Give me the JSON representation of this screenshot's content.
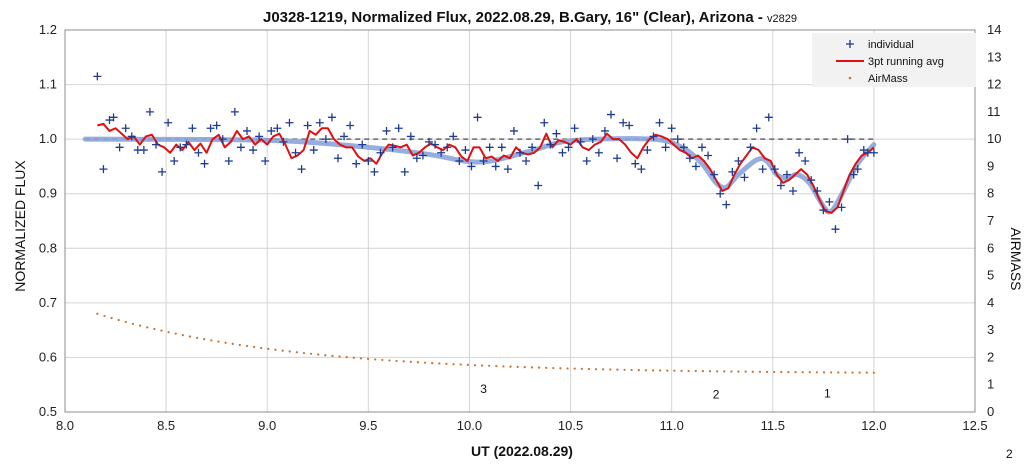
{
  "chart_data": {
    "type": "scatter",
    "title_main": "J0328-1219, Normalized Flux, 2022.08.29, B.Gary, 16\" (Clear), Arizona - ",
    "title_version": "v2829",
    "xlabel": "UT (2022.08.29)",
    "ylabel": "NORMALIZED FLUX",
    "y2label": "AIRMASS",
    "xlim": [
      8.0,
      12.5
    ],
    "ylim": [
      0.5,
      1.2
    ],
    "y2lim": [
      0,
      14
    ],
    "xticks": [
      "8.0",
      "8.5",
      "9.0",
      "9.5",
      "10.0",
      "10.5",
      "11.0",
      "11.5",
      "12.0",
      "12.5"
    ],
    "yticks": [
      "0.5",
      "0.6",
      "0.7",
      "0.8",
      "0.9",
      "1.0",
      "1.1",
      "1.2"
    ],
    "y2ticks": [
      "0",
      "1",
      "2",
      "3",
      "4",
      "5",
      "6",
      "7",
      "8",
      "9",
      "10",
      "11",
      "12",
      "13",
      "14"
    ],
    "grid": true,
    "legend_position": "top-right",
    "legend": [
      {
        "label": "individual",
        "color": "#1f3c8f",
        "marker": "plus"
      },
      {
        "label": "3pt running avg",
        "color": "#e01010",
        "marker": "line"
      },
      {
        "label": "AirMass",
        "color": "#c87030",
        "marker": "dot"
      }
    ],
    "baseline": {
      "y": 1.0,
      "x": [
        8.1,
        12.0
      ],
      "style": "dashed",
      "color": "#666666"
    },
    "model": {
      "color": "#8aa4dc",
      "points": [
        [
          8.1,
          1.0
        ],
        [
          9.0,
          0.998
        ],
        [
          9.5,
          0.985
        ],
        [
          9.8,
          0.972
        ],
        [
          10.05,
          0.958
        ],
        [
          10.3,
          0.978
        ],
        [
          10.5,
          0.997
        ],
        [
          10.9,
          1.0
        ],
        [
          11.05,
          0.985
        ],
        [
          11.15,
          0.955
        ],
        [
          11.22,
          0.92
        ],
        [
          11.27,
          0.912
        ],
        [
          11.33,
          0.935
        ],
        [
          11.42,
          0.962
        ],
        [
          11.47,
          0.96
        ],
        [
          11.52,
          0.935
        ],
        [
          11.57,
          0.928
        ],
        [
          11.62,
          0.935
        ],
        [
          11.68,
          0.92
        ],
        [
          11.75,
          0.877
        ],
        [
          11.79,
          0.868
        ],
        [
          11.85,
          0.905
        ],
        [
          11.92,
          0.955
        ],
        [
          12.0,
          0.99
        ]
      ]
    },
    "series": [
      {
        "name": "individual",
        "points": [
          [
            8.16,
            1.115
          ],
          [
            8.19,
            0.945
          ],
          [
            8.22,
            1.035
          ],
          [
            8.24,
            1.04
          ],
          [
            8.27,
            0.985
          ],
          [
            8.3,
            1.02
          ],
          [
            8.33,
            1.005
          ],
          [
            8.36,
            0.98
          ],
          [
            8.39,
            0.98
          ],
          [
            8.42,
            1.05
          ],
          [
            8.45,
            0.99
          ],
          [
            8.48,
            0.94
          ],
          [
            8.51,
            1.03
          ],
          [
            8.54,
            0.96
          ],
          [
            8.57,
            0.985
          ],
          [
            8.6,
            0.99
          ],
          [
            8.63,
            1.02
          ],
          [
            8.66,
            0.975
          ],
          [
            8.69,
            0.955
          ],
          [
            8.72,
            1.02
          ],
          [
            8.75,
            1.025
          ],
          [
            8.78,
            1.0
          ],
          [
            8.81,
            0.96
          ],
          [
            8.84,
            1.05
          ],
          [
            8.87,
            0.985
          ],
          [
            8.9,
            1.015
          ],
          [
            8.93,
            0.98
          ],
          [
            8.96,
            1.005
          ],
          [
            8.99,
            0.96
          ],
          [
            9.02,
            1.015
          ],
          [
            9.05,
            1.02
          ],
          [
            9.08,
            0.995
          ],
          [
            9.11,
            1.03
          ],
          [
            9.14,
            0.975
          ],
          [
            9.17,
            0.945
          ],
          [
            9.2,
            1.025
          ],
          [
            9.23,
            0.98
          ],
          [
            9.26,
            1.03
          ],
          [
            9.29,
            1.0
          ],
          [
            9.32,
            1.04
          ],
          [
            9.35,
            0.965
          ],
          [
            9.38,
            1.005
          ],
          [
            9.41,
            1.025
          ],
          [
            9.44,
            0.955
          ],
          [
            9.47,
            0.99
          ],
          [
            9.5,
            0.96
          ],
          [
            9.53,
            0.94
          ],
          [
            9.56,
            0.975
          ],
          [
            9.59,
            1.015
          ],
          [
            9.62,
            0.985
          ],
          [
            9.65,
            1.02
          ],
          [
            9.68,
            0.94
          ],
          [
            9.71,
            1.005
          ],
          [
            9.74,
            0.965
          ],
          [
            9.77,
            0.97
          ],
          [
            9.8,
            0.995
          ],
          [
            9.83,
            0.99
          ],
          [
            9.86,
            0.975
          ],
          [
            9.89,
            0.985
          ],
          [
            9.92,
            1.005
          ],
          [
            9.95,
            0.96
          ],
          [
            9.98,
            0.98
          ],
          [
            10.01,
            0.95
          ],
          [
            10.04,
            1.04
          ],
          [
            10.07,
            0.96
          ],
          [
            10.1,
            0.985
          ],
          [
            10.13,
            0.95
          ],
          [
            10.16,
            0.985
          ],
          [
            10.19,
            0.945
          ],
          [
            10.22,
            1.015
          ],
          [
            10.25,
            0.975
          ],
          [
            10.28,
            0.96
          ],
          [
            10.31,
            0.985
          ],
          [
            10.34,
            0.915
          ],
          [
            10.37,
            1.03
          ],
          [
            10.4,
            0.99
          ],
          [
            10.43,
            1.01
          ],
          [
            10.46,
            0.975
          ],
          [
            10.49,
            0.985
          ],
          [
            10.52,
            1.02
          ],
          [
            10.55,
            0.995
          ],
          [
            10.58,
            0.96
          ],
          [
            10.61,
            1.0
          ],
          [
            10.64,
            0.975
          ],
          [
            10.67,
            1.015
          ],
          [
            10.7,
            1.045
          ],
          [
            10.73,
            0.965
          ],
          [
            10.76,
            1.03
          ],
          [
            10.79,
            1.025
          ],
          [
            10.82,
            0.955
          ],
          [
            10.85,
            0.945
          ],
          [
            10.88,
            0.98
          ],
          [
            10.91,
            1.005
          ],
          [
            10.94,
            1.03
          ],
          [
            10.97,
            0.985
          ],
          [
            11.0,
            1.02
          ],
          [
            11.03,
            1.0
          ],
          [
            11.06,
            0.985
          ],
          [
            11.09,
            0.965
          ],
          [
            11.12,
            0.95
          ],
          [
            11.15,
            0.985
          ],
          [
            11.18,
            0.97
          ],
          [
            11.21,
            0.935
          ],
          [
            11.24,
            0.9
          ],
          [
            11.27,
            0.88
          ],
          [
            11.3,
            0.94
          ],
          [
            11.33,
            0.96
          ],
          [
            11.36,
            0.93
          ],
          [
            11.39,
            0.985
          ],
          [
            11.42,
            1.02
          ],
          [
            11.45,
            0.945
          ],
          [
            11.48,
            1.04
          ],
          [
            11.51,
            0.945
          ],
          [
            11.54,
            0.915
          ],
          [
            11.57,
            0.935
          ],
          [
            11.6,
            0.905
          ],
          [
            11.63,
            0.975
          ],
          [
            11.66,
            0.96
          ],
          [
            11.69,
            0.925
          ],
          [
            11.72,
            0.905
          ],
          [
            11.75,
            0.87
          ],
          [
            11.78,
            0.885
          ],
          [
            11.81,
            0.835
          ],
          [
            11.84,
            0.875
          ],
          [
            11.87,
            1.0
          ],
          [
            11.9,
            0.935
          ],
          [
            11.92,
            0.945
          ],
          [
            11.95,
            0.98
          ],
          [
            11.97,
            0.975
          ],
          [
            12.0,
            0.975
          ]
        ]
      },
      {
        "name": "3pt running avg",
        "points": [
          [
            8.16,
            1.025
          ],
          [
            8.19,
            1.028
          ],
          [
            8.22,
            1.015
          ],
          [
            8.25,
            1.02
          ],
          [
            8.28,
            1.01
          ],
          [
            8.31,
            1.0
          ],
          [
            8.34,
            1.005
          ],
          [
            8.37,
            0.99
          ],
          [
            8.4,
            1.005
          ],
          [
            8.43,
            1.008
          ],
          [
            8.46,
            0.99
          ],
          [
            8.49,
            0.985
          ],
          [
            8.52,
            0.975
          ],
          [
            8.55,
            0.99
          ],
          [
            8.58,
            0.98
          ],
          [
            8.61,
            0.995
          ],
          [
            8.64,
            0.98
          ],
          [
            8.67,
            0.992
          ],
          [
            8.7,
            0.975
          ],
          [
            8.73,
            1.0
          ],
          [
            8.76,
            1.008
          ],
          [
            8.79,
            0.985
          ],
          [
            8.82,
            0.995
          ],
          [
            8.85,
            1.015
          ],
          [
            8.88,
            1.0
          ],
          [
            8.91,
            1.005
          ],
          [
            8.94,
            0.99
          ],
          [
            8.97,
            1.0
          ],
          [
            9.0,
            0.99
          ],
          [
            9.03,
            1.005
          ],
          [
            9.06,
            1.01
          ],
          [
            9.09,
            0.99
          ],
          [
            9.12,
            0.965
          ],
          [
            9.15,
            0.97
          ],
          [
            9.18,
            0.98
          ],
          [
            9.21,
            1.015
          ],
          [
            9.24,
            1.008
          ],
          [
            9.27,
            1.02
          ],
          [
            9.3,
            1.02
          ],
          [
            9.33,
            1.0
          ],
          [
            9.36,
            0.99
          ],
          [
            9.39,
            0.985
          ],
          [
            9.42,
            0.985
          ],
          [
            9.45,
            0.968
          ],
          [
            9.48,
            0.96
          ],
          [
            9.51,
            0.965
          ],
          [
            9.54,
            0.955
          ],
          [
            9.57,
            0.975
          ],
          [
            9.6,
            0.99
          ],
          [
            9.63,
            0.988
          ],
          [
            9.66,
            0.985
          ],
          [
            9.69,
            0.99
          ],
          [
            9.72,
            0.97
          ],
          [
            9.75,
            0.975
          ],
          [
            9.78,
            0.985
          ],
          [
            9.81,
            0.992
          ],
          [
            9.84,
            0.985
          ],
          [
            9.87,
            0.98
          ],
          [
            9.9,
            0.99
          ],
          [
            9.93,
            0.985
          ],
          [
            9.96,
            0.968
          ],
          [
            9.99,
            0.96
          ],
          [
            10.02,
            0.985
          ],
          [
            10.05,
            0.985
          ],
          [
            10.08,
            0.965
          ],
          [
            10.11,
            0.968
          ],
          [
            10.14,
            0.96
          ],
          [
            10.17,
            0.97
          ],
          [
            10.2,
            0.965
          ],
          [
            10.23,
            0.985
          ],
          [
            10.26,
            0.975
          ],
          [
            10.29,
            0.972
          ],
          [
            10.32,
            0.975
          ],
          [
            10.35,
            0.985
          ],
          [
            10.38,
            1.01
          ],
          [
            10.41,
            0.985
          ],
          [
            10.44,
            0.998
          ],
          [
            10.47,
            0.995
          ],
          [
            10.5,
            0.99
          ],
          [
            10.53,
            1.0
          ],
          [
            10.56,
            0.985
          ],
          [
            10.59,
            0.98
          ],
          [
            10.62,
            0.99
          ],
          [
            10.65,
            0.995
          ],
          [
            10.68,
            1.01
          ],
          [
            10.71,
            1.0
          ],
          [
            10.74,
            1.0
          ],
          [
            10.77,
            0.99
          ],
          [
            10.8,
            0.975
          ],
          [
            10.83,
            0.965
          ],
          [
            10.86,
            0.985
          ],
          [
            10.89,
            1.0
          ],
          [
            10.92,
            1.008
          ],
          [
            10.95,
            1.005
          ],
          [
            10.98,
            1.0
          ],
          [
            11.01,
            0.99
          ],
          [
            11.04,
            0.98
          ],
          [
            11.07,
            0.975
          ],
          [
            11.1,
            0.965
          ],
          [
            11.13,
            0.97
          ],
          [
            11.16,
            0.96
          ],
          [
            11.19,
            0.945
          ],
          [
            11.22,
            0.925
          ],
          [
            11.25,
            0.905
          ],
          [
            11.28,
            0.91
          ],
          [
            11.31,
            0.935
          ],
          [
            11.34,
            0.955
          ],
          [
            11.37,
            0.97
          ],
          [
            11.4,
            0.985
          ],
          [
            11.43,
            0.98
          ],
          [
            11.46,
            0.965
          ],
          [
            11.49,
            0.96
          ],
          [
            11.52,
            0.935
          ],
          [
            11.55,
            0.92
          ],
          [
            11.58,
            0.925
          ],
          [
            11.61,
            0.935
          ],
          [
            11.64,
            0.945
          ],
          [
            11.67,
            0.935
          ],
          [
            11.7,
            0.915
          ],
          [
            11.73,
            0.89
          ],
          [
            11.76,
            0.868
          ],
          [
            11.79,
            0.865
          ],
          [
            11.82,
            0.875
          ],
          [
            11.85,
            0.905
          ],
          [
            11.88,
            0.935
          ],
          [
            11.91,
            0.955
          ],
          [
            11.94,
            0.97
          ],
          [
            11.97,
            0.975
          ],
          [
            12.0,
            0.985
          ]
        ]
      }
    ],
    "airmass": {
      "x_start": 8.16,
      "x_end": 12.0,
      "count": 110,
      "y_start": 3.6,
      "y_end": 1.4,
      "decay": 2.6
    },
    "annotations": [
      {
        "text": "3",
        "x": 10.07,
        "y": 0.535
      },
      {
        "text": "2",
        "x": 11.22,
        "y": 0.525
      },
      {
        "text": "1",
        "x": 11.77,
        "y": 0.527
      }
    ],
    "corner_label": "2"
  }
}
